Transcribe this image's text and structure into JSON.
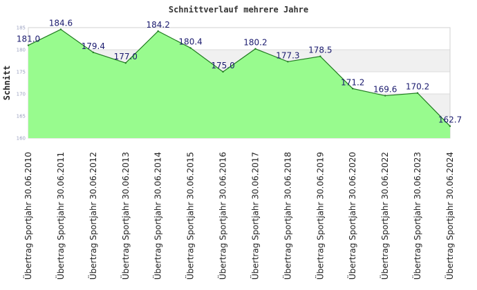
{
  "chart_data": {
    "type": "area",
    "title": "Schnittverlauf mehrere Jahre",
    "xlabel": "",
    "ylabel": "Schnitt",
    "ylim": [
      160,
      185
    ],
    "yticks": [
      160,
      165,
      170,
      175,
      180,
      185
    ],
    "grid": true,
    "legend": "none",
    "colors": {
      "fill": "#98fb8e",
      "line": "#1f7a1f",
      "band_light": "#ffffff",
      "band_dark": "#f0f0f0",
      "label": "#1a1a6e"
    },
    "categories": [
      "Übertrag Sportjahr 30.06.2010",
      "Übertrag Sportjahr 30.06.2011",
      "Übertrag Sportjahr 30.06.2012",
      "Übertrag Sportjahr 30.06.2013",
      "Übertrag Sportjahr 30.06.2014",
      "Übertrag Sportjahr 30.06.2015",
      "Übertrag Sportjahr 30.06.2016",
      "Übertrag Sportjahr 30.06.2017",
      "Übertrag Sportjahr 30.06.2018",
      "Übertrag Sportjahr 30.06.2019",
      "Übertrag Sportjahr 30.06.2020",
      "Übertrag Sportjahr 30.06.2022",
      "Übertrag Sportjahr 30.06.2023",
      "Übertrag Sportjahr 30.06.2024"
    ],
    "values": [
      181.0,
      184.6,
      179.4,
      177.0,
      184.2,
      180.4,
      175.0,
      180.2,
      177.3,
      178.5,
      171.2,
      169.6,
      170.2,
      162.7
    ],
    "value_labels": [
      "181.0",
      "184.6",
      "179.4",
      "177.0",
      "184.2",
      "180.4",
      "175.0",
      "180.2",
      "177.3",
      "178.5",
      "171.2",
      "169.6",
      "170.2",
      "162.7"
    ]
  }
}
